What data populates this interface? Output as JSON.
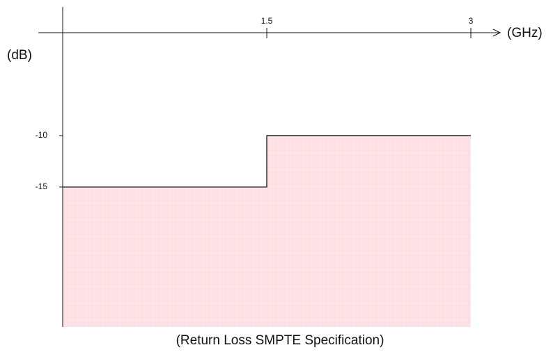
{
  "chart_data": {
    "type": "line",
    "step": true,
    "title": "(Return Loss SMPTE Specification)",
    "x_label": "(GHz)",
    "y_label": "(dB)",
    "x": [
      0,
      1.5,
      1.5,
      3
    ],
    "series": [
      {
        "color": "#111111",
        "fill": "#fde4e7",
        "values": [
          -15,
          -15,
          -10,
          -10
        ]
      }
    ],
    "xlim": [
      0,
      3
    ],
    "xticks": [
      1.5,
      3
    ],
    "ylim": [
      -28.6,
      0
    ],
    "yticks": [
      -10,
      -15
    ]
  }
}
